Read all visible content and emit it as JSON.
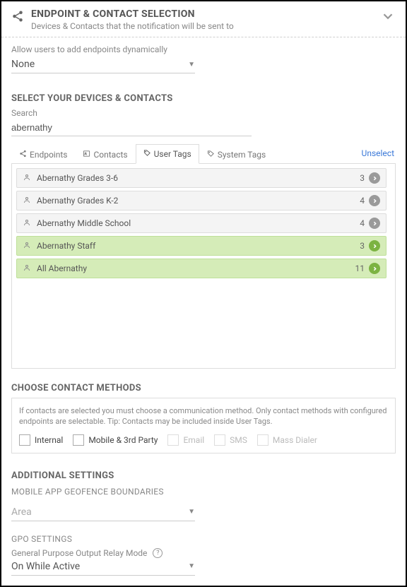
{
  "header": {
    "title": "ENDPOINT & CONTACT SELECTION",
    "subtitle": "Devices & Contacts that the notification will be sent to"
  },
  "allowUsers": {
    "label": "Allow users to add endpoints dynamically",
    "value": "None"
  },
  "devices": {
    "title": "SELECT YOUR DEVICES & CONTACTS",
    "searchLabel": "Search",
    "searchValue": "abernathy",
    "tabs": {
      "endpoints": "Endpoints",
      "contacts": "Contacts",
      "userTags": "User Tags",
      "systemTags": "System Tags"
    },
    "unselect": "Unselect",
    "tags": [
      {
        "label": "Abernathy Grades 3-6",
        "count": "3",
        "selected": false
      },
      {
        "label": "Abernathy Grades K-2",
        "count": "4",
        "selected": false
      },
      {
        "label": "Abernathy Middle School",
        "count": "4",
        "selected": false
      },
      {
        "label": "Abernathy Staff",
        "count": "3",
        "selected": true
      },
      {
        "label": "All Abernathy",
        "count": "11",
        "selected": true
      }
    ]
  },
  "methods": {
    "title": "CHOOSE CONTACT METHODS",
    "help": "If contacts are selected you must choose a communication method. Only contact methods with configured endpoints are selectable. Tip: Contacts may be included inside User Tags.",
    "items": [
      {
        "label": "Internal",
        "enabled": true
      },
      {
        "label": "Mobile & 3rd Party",
        "enabled": true
      },
      {
        "label": "Email",
        "enabled": false
      },
      {
        "label": "SMS",
        "enabled": false
      },
      {
        "label": "Mass Dialer",
        "enabled": false
      }
    ]
  },
  "additional": {
    "title": "ADDITIONAL SETTINGS",
    "geofence": {
      "title": "MOBILE APP GEOFENCE BOUNDARIES",
      "label": "Area"
    },
    "gpo": {
      "title": "GPO SETTINGS",
      "label": "General Purpose Output Relay Mode",
      "value": "On While Active"
    }
  },
  "colors": {
    "selectedRowBg": "#d5ecb8",
    "greenArrow": "#7cb342",
    "greyArrow": "#9a9a9a",
    "link": "#3a78d8"
  }
}
